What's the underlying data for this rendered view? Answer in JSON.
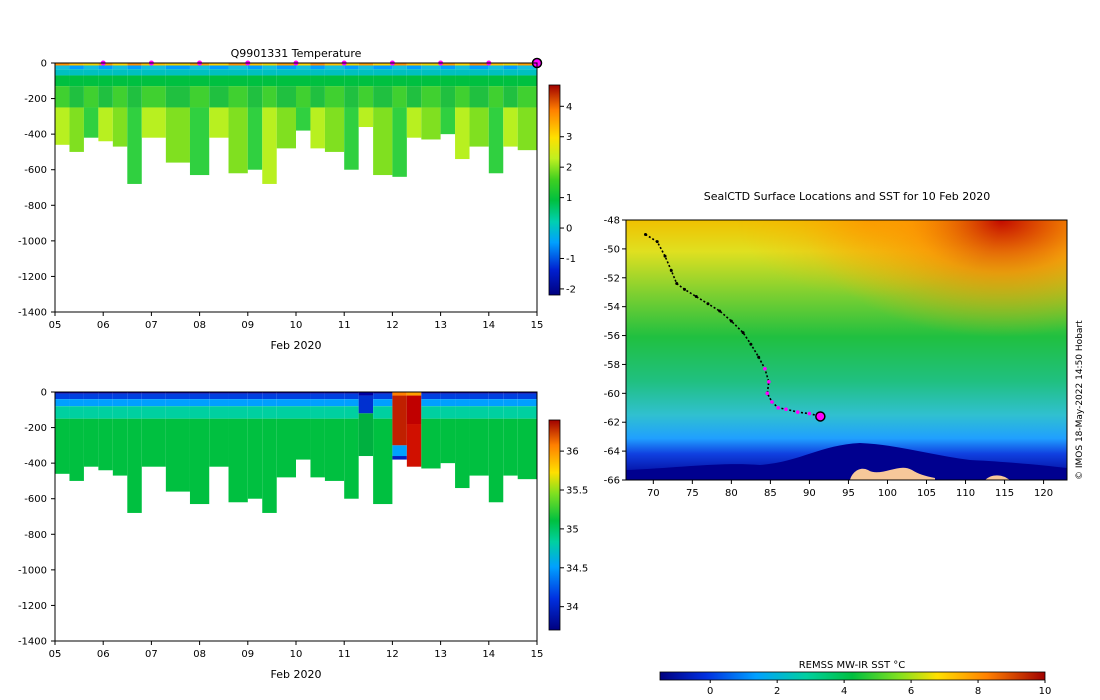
{
  "chart_data": [
    {
      "type": "heatmap",
      "title": "Q9901331  Temperature",
      "xlabel": "Feb 2020",
      "ylabel": "",
      "x_ticks": [
        "05",
        "06",
        "07",
        "08",
        "09",
        "10",
        "11",
        "12",
        "13",
        "14",
        "15"
      ],
      "xlim": [
        5,
        15
      ],
      "ylim": [
        -1400,
        0
      ],
      "y_ticks": [
        "0",
        "-200",
        "-400",
        "-600",
        "-800",
        "-1000",
        "-1200",
        "-1400"
      ],
      "colorbar": {
        "min": -2.2,
        "max": 4.7,
        "ticks": [
          "4",
          "3",
          "2",
          "1",
          "0",
          "-1",
          "-2"
        ]
      },
      "profile_days": [
        5.0,
        5.3,
        5.6,
        5.9,
        6.2,
        6.5,
        6.8,
        7.3,
        7.8,
        8.2,
        8.6,
        9.0,
        9.3,
        9.6,
        10.0,
        10.3,
        10.6,
        11.0,
        11.3,
        11.6,
        12.0,
        12.3,
        12.6,
        13.0,
        13.3,
        13.6,
        14.0,
        14.3,
        14.6,
        15.0
      ],
      "profile_max_depth": [
        460,
        500,
        420,
        440,
        470,
        680,
        420,
        560,
        630,
        420,
        620,
        600,
        680,
        480,
        380,
        480,
        500,
        600,
        360,
        630,
        640,
        420,
        430,
        400,
        540,
        470,
        620,
        470,
        490,
        560
      ],
      "marker_days": [
        6,
        7,
        8,
        9,
        10,
        11,
        12,
        13,
        14,
        15
      ]
    },
    {
      "type": "heatmap",
      "title": "",
      "xlabel": "Feb 2020",
      "ylabel": "",
      "x_ticks": [
        "05",
        "06",
        "07",
        "08",
        "09",
        "10",
        "11",
        "12",
        "13",
        "14",
        "15"
      ],
      "xlim": [
        5,
        15
      ],
      "ylim": [
        -1400,
        0
      ],
      "y_ticks": [
        "0",
        "-200",
        "-400",
        "-600",
        "-800",
        "-1000",
        "-1200",
        "-1400"
      ],
      "colorbar": {
        "min": 33.7,
        "max": 36.4,
        "ticks": [
          "36",
          "35.5",
          "35",
          "34.5",
          "34"
        ]
      },
      "profile_days": [
        5.0,
        5.3,
        5.6,
        5.9,
        6.2,
        6.5,
        6.8,
        7.3,
        7.8,
        8.2,
        8.6,
        9.0,
        9.3,
        9.6,
        10.0,
        10.3,
        10.6,
        11.0,
        11.3,
        11.6,
        12.0,
        12.3,
        12.6,
        13.0,
        13.3,
        13.6,
        14.0,
        14.3,
        14.6,
        15.0
      ],
      "profile_max_depth": [
        460,
        500,
        420,
        440,
        470,
        680,
        420,
        560,
        630,
        420,
        620,
        600,
        680,
        480,
        380,
        480,
        500,
        600,
        360,
        630,
        640,
        420,
        430,
        400,
        540,
        470,
        620,
        470,
        490,
        560
      ]
    },
    {
      "type": "heatmap",
      "title": "SealCTD Surface Locations and SST for 10 Feb 2020",
      "xlabel": "",
      "ylabel": "",
      "x_ticks": [
        "70",
        "75",
        "80",
        "85",
        "90",
        "95",
        "100",
        "105",
        "110",
        "115",
        "120"
      ],
      "xlim": [
        66.5,
        123
      ],
      "ylim": [
        -66,
        -48
      ],
      "y_ticks": [
        "-48",
        "-50",
        "-52",
        "-54",
        "-56",
        "-58",
        "-60",
        "-62",
        "-64",
        "-66"
      ],
      "colorbar": {
        "label": "REMSS MW-IR SST °C",
        "min": -1.5,
        "max": 10,
        "ticks": [
          "0",
          "2",
          "4",
          "6",
          "8",
          "10"
        ]
      },
      "track": {
        "lon": [
          69.0,
          70.5,
          71.5,
          72.3,
          73.0,
          74.0,
          75.5,
          77.0,
          78.5,
          80.0,
          81.5,
          82.5,
          83.5,
          84.3,
          84.8,
          84.6,
          85.2,
          86.0,
          87.0,
          88.5,
          90.0,
          91.4
        ],
        "lat": [
          -49.0,
          -49.5,
          -50.5,
          -51.5,
          -52.4,
          -52.8,
          -53.3,
          -53.8,
          -54.3,
          -55.0,
          -55.8,
          -56.6,
          -57.5,
          -58.3,
          -59.2,
          -60.0,
          -60.6,
          -61.0,
          -61.1,
          -61.3,
          -61.4,
          -61.6
        ]
      },
      "credit": "© IMOS 18-May-2022 14:50 Hobart"
    }
  ]
}
